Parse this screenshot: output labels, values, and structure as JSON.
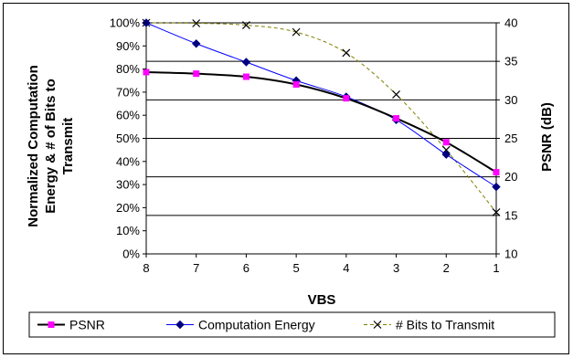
{
  "chart_data": {
    "type": "line",
    "title": "",
    "xlabel": "VBS",
    "ylabel_left": "Normalized Computation Energy & # of Bits to Transmit",
    "ylabel_left_lines": [
      "Normalized Computation",
      "Energy & # of Bits to",
      "Transmit"
    ],
    "ylabel_right": "PSNR (dB)",
    "categories": [
      "8",
      "7",
      "6",
      "5",
      "4",
      "3",
      "2",
      "1"
    ],
    "ylim_left": [
      0,
      100
    ],
    "ylim_right": [
      10,
      40
    ],
    "left_ticks": [
      "0%",
      "10%",
      "20%",
      "30%",
      "40%",
      "50%",
      "60%",
      "70%",
      "80%",
      "90%",
      "100%"
    ],
    "right_ticks": [
      "10",
      "15",
      "20",
      "25",
      "30",
      "35",
      "40"
    ],
    "grid": "horizontal (right axis)",
    "legend_position": "bottom",
    "series": [
      {
        "name": "PSNR",
        "axis": "right",
        "color": "#ff00ff",
        "line_color": "#000000",
        "marker": "square",
        "values": [
          33.6,
          33.4,
          33.0,
          32.0,
          30.2,
          27.6,
          24.5,
          20.6
        ]
      },
      {
        "name": "Computation Energy",
        "axis": "left",
        "color": "#000080",
        "line_color": "#0000ff",
        "marker": "diamond",
        "values": [
          100,
          91,
          83,
          75,
          68,
          58,
          43,
          29
        ]
      },
      {
        "name": "# Bits to Transmit",
        "axis": "left",
        "color": "#000000",
        "line_color": "#808000",
        "marker": "x",
        "dashed": true,
        "values": [
          100,
          99.8,
          99,
          96,
          87,
          69,
          45,
          18
        ]
      }
    ]
  }
}
